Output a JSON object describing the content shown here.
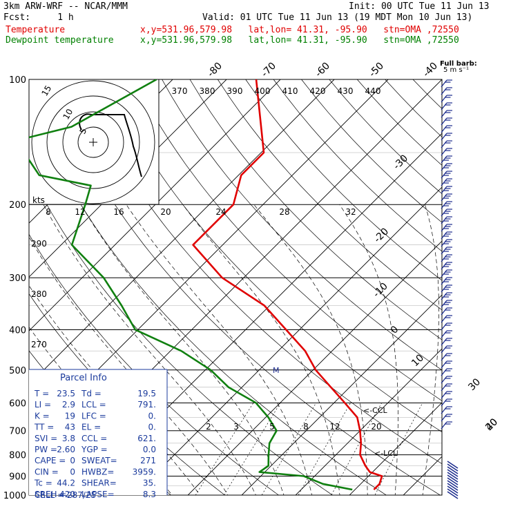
{
  "header": {
    "model": "3km ARW-WRF -- NCAR/MMM",
    "init": "Init: 00 UTC Tue 11 Jun 13",
    "fcst": "Fcst:     1 h",
    "valid": "Valid: 01 UTC Tue 11 Jun 13 (19 MDT Mon 10 Jun 13)",
    "temp_label": "Temperature",
    "dew_label": "Dewpoint temperature",
    "location": "x,y=531.96,579.98   lat,lon= 41.31, -95.90   stn=OMA ,72550"
  },
  "colors": {
    "temperature": "#e00000",
    "dewpoint": "#108010",
    "grid": "#000000",
    "parcel_box": "#1a3a9c",
    "wind": "#1a2a8c"
  },
  "chart_data": {
    "type": "line",
    "title": "",
    "ylabel": "",
    "xlabel": "",
    "pressure_levels": [
      "100",
      "200",
      "300",
      "400",
      "500",
      "600",
      "700",
      "800",
      "900",
      "1000"
    ],
    "isotherm_labels": [
      "-80",
      "-70",
      "-60",
      "-50",
      "-40",
      "-30",
      "-20",
      "-10",
      "0",
      "10",
      "20",
      "30",
      "40"
    ],
    "theta_labels": [
      "290",
      "280",
      "270"
    ],
    "theta_e_labels": [
      "370",
      "380",
      "390",
      "400",
      "410",
      "420",
      "430",
      "440"
    ],
    "mixing_ratio_labels": [
      "2",
      "3",
      "5",
      "8",
      "12",
      "20"
    ],
    "series": [
      {
        "name": "Temperature",
        "color": "#e00000",
        "points": [
          [
            100,
            -74.5
          ],
          [
            150,
            -59.5
          ],
          [
            170,
            -59.5
          ],
          [
            200,
            -55.5
          ],
          [
            250,
            -55.5
          ],
          [
            300,
            -44.0
          ],
          [
            350,
            -31.0
          ],
          [
            400,
            -22.5
          ],
          [
            450,
            -15.0
          ],
          [
            500,
            -9.5
          ],
          [
            550,
            -3.5
          ],
          [
            600,
            2.0
          ],
          [
            650,
            7.0
          ],
          [
            700,
            10.0
          ],
          [
            750,
            12.5
          ],
          [
            800,
            14.5
          ],
          [
            850,
            17.5
          ],
          [
            880,
            19.5
          ],
          [
            900,
            22.5
          ],
          [
            940,
            23.5
          ],
          [
            970,
            23.5
          ]
        ]
      },
      {
        "name": "Dewpoint temperature",
        "color": "#108010",
        "points": [
          [
            100,
            -93.0
          ],
          [
            130,
            -100.0
          ],
          [
            140,
            -107.5
          ],
          [
            150,
            -104.0
          ],
          [
            170,
            -97.0
          ],
          [
            180,
            -85.5
          ],
          [
            200,
            -83.0
          ],
          [
            250,
            -78.0
          ],
          [
            300,
            -66.0
          ],
          [
            350,
            -57.5
          ],
          [
            400,
            -50.5
          ],
          [
            450,
            -38.0
          ],
          [
            500,
            -29.0
          ],
          [
            550,
            -22.5
          ],
          [
            600,
            -14.5
          ],
          [
            650,
            -9.5
          ],
          [
            700,
            -5.5
          ],
          [
            750,
            -4.5
          ],
          [
            800,
            -2.5
          ],
          [
            850,
            -0.5
          ],
          [
            880,
            -1.0
          ],
          [
            900,
            8.0
          ],
          [
            940,
            13.0
          ],
          [
            970,
            19.5
          ]
        ]
      }
    ],
    "hodograph": {
      "rings_kts": [
        "5",
        "10",
        "15"
      ],
      "label": "kts",
      "speed_ticks": [
        "8",
        "12",
        "16",
        "20",
        "24",
        "28",
        "32"
      ]
    },
    "wind_legend": {
      "label": "Full barb:",
      "unit": "5 m s⁻¹"
    },
    "annotations": {
      "ccl": "<-CCL",
      "lcl": "<-LCL",
      "lfc_mark": "M"
    }
  },
  "parcel_info": {
    "title": "Parcel Info",
    "rows": [
      {
        "l": "T  =",
        "lv": "23.5",
        "r": "Td =",
        "rv": "19.5"
      },
      {
        "l": "LI =",
        "lv": "2.9",
        "r": "LCL =",
        "rv": "791."
      },
      {
        "l": "K  =",
        "lv": "19",
        "r": "LFC =",
        "rv": "0."
      },
      {
        "l": "TT =",
        "lv": "43",
        "r": "EL  =",
        "rv": "0."
      },
      {
        "l": "SVI =",
        "lv": "3.8",
        "r": "CCL =",
        "rv": "621."
      },
      {
        "l": "PW =",
        "lv": "2.60",
        "r": "YGP =",
        "rv": "0.0"
      },
      {
        "l": "CAPE =",
        "lv": "0",
        "r": "SWEAT=",
        "rv": "271"
      },
      {
        "l": "CIN =",
        "lv": "0",
        "r": "HWBZ=",
        "rv": "3959."
      },
      {
        "l": "Tc =",
        "lv": "44.2",
        "r": "SHEAR=",
        "rv": "35."
      },
      {
        "l": "SREH =",
        "lv": "420",
        "r": "LAPSE=",
        "rv": "8.3"
      }
    ],
    "cell": "CELL = 287/25"
  }
}
